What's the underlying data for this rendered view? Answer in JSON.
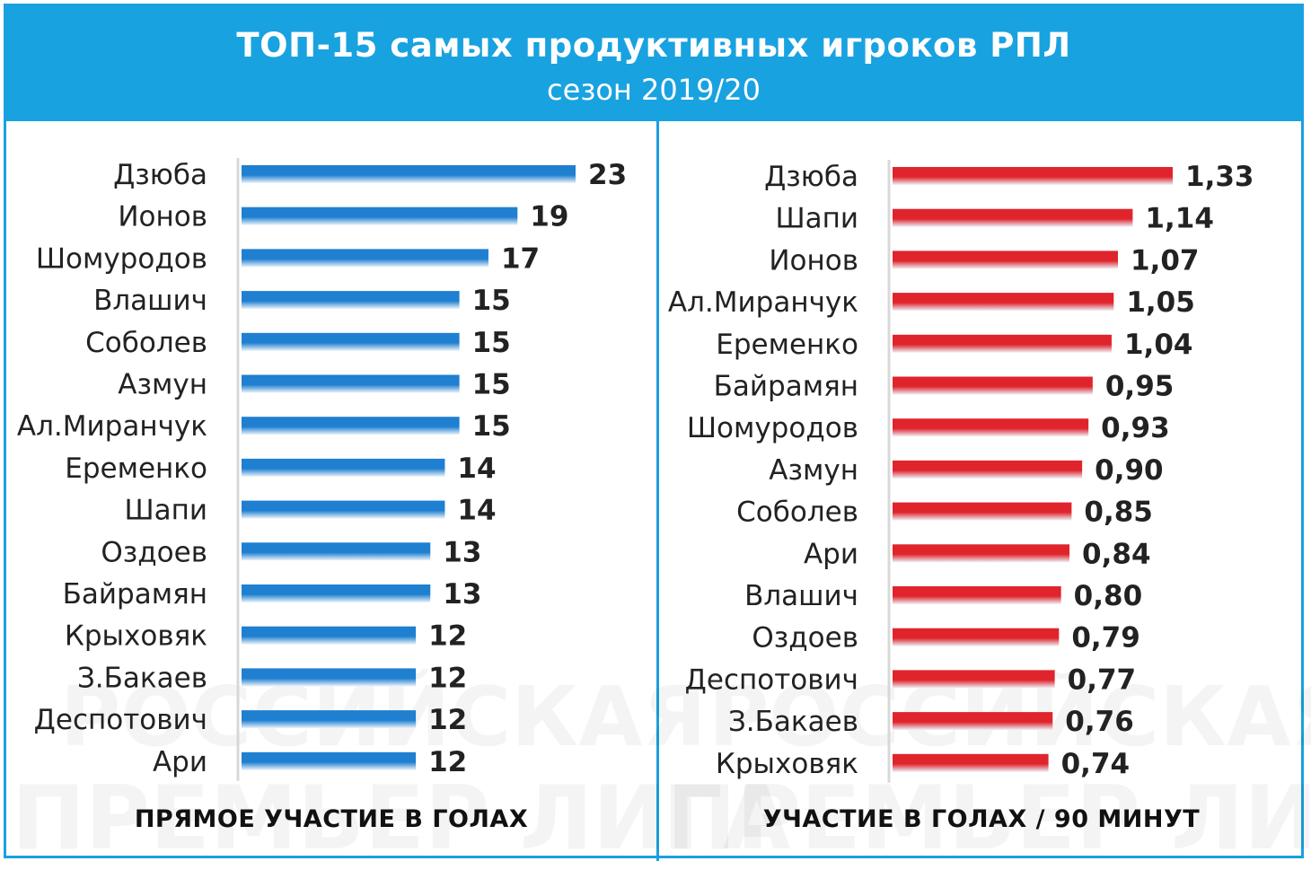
{
  "header": {
    "title": "ТОП-15 самых продуктивных игроков РПЛ",
    "subtitle": "сезон 2019/20"
  },
  "watermark": {
    "line1": "РОССИЙСКАЯ",
    "line2": "ПРЕМЬЕР ЛИГА"
  },
  "colors": {
    "accent": "#19a2e0",
    "left_bar": "#1f7fd0",
    "right_bar": "#e0242c"
  },
  "chart_data": [
    {
      "type": "bar",
      "orientation": "horizontal",
      "title": "ПРЯМОЕ УЧАСТИЕ В ГОЛАХ",
      "categories": [
        "Дзюба",
        "Ионов",
        "Шомуродов",
        "Влашич",
        "Соболев",
        "Азмун",
        "Ал.Миранчук",
        "Еременко",
        "Шапи",
        "Оздоев",
        "Байрамян",
        "Крыховяк",
        "З.Бакаев",
        "Деспотович",
        "Ари"
      ],
      "values": [
        23,
        19,
        17,
        15,
        15,
        15,
        15,
        14,
        14,
        13,
        13,
        12,
        12,
        12,
        12
      ],
      "value_labels": [
        "23",
        "19",
        "17",
        "15",
        "15",
        "15",
        "15",
        "14",
        "14",
        "13",
        "13",
        "12",
        "12",
        "12",
        "12"
      ],
      "xlim": [
        0,
        23
      ]
    },
    {
      "type": "bar",
      "orientation": "horizontal",
      "title": "УЧАСТИЕ В ГОЛАХ / 90 МИНУТ",
      "categories": [
        "Дзюба",
        "Шапи",
        "Ионов",
        "Ал.Миранчук",
        "Еременко",
        "Байрамян",
        "Шомуродов",
        "Азмун",
        "Соболев",
        "Ари",
        "Влашич",
        "Оздоев",
        "Деспотович",
        "З.Бакаев",
        "Крыховяк"
      ],
      "values": [
        1.33,
        1.14,
        1.07,
        1.05,
        1.04,
        0.95,
        0.93,
        0.9,
        0.85,
        0.84,
        0.8,
        0.79,
        0.77,
        0.76,
        0.74
      ],
      "value_labels": [
        "1,33",
        "1,14",
        "1,07",
        "1,05",
        "1,04",
        "0,95",
        "0,93",
        "0,90",
        "0,85",
        "0,84",
        "0,80",
        "0,79",
        "0,77",
        "0,76",
        "0,74"
      ],
      "xlim": [
        0,
        1.33
      ]
    }
  ]
}
